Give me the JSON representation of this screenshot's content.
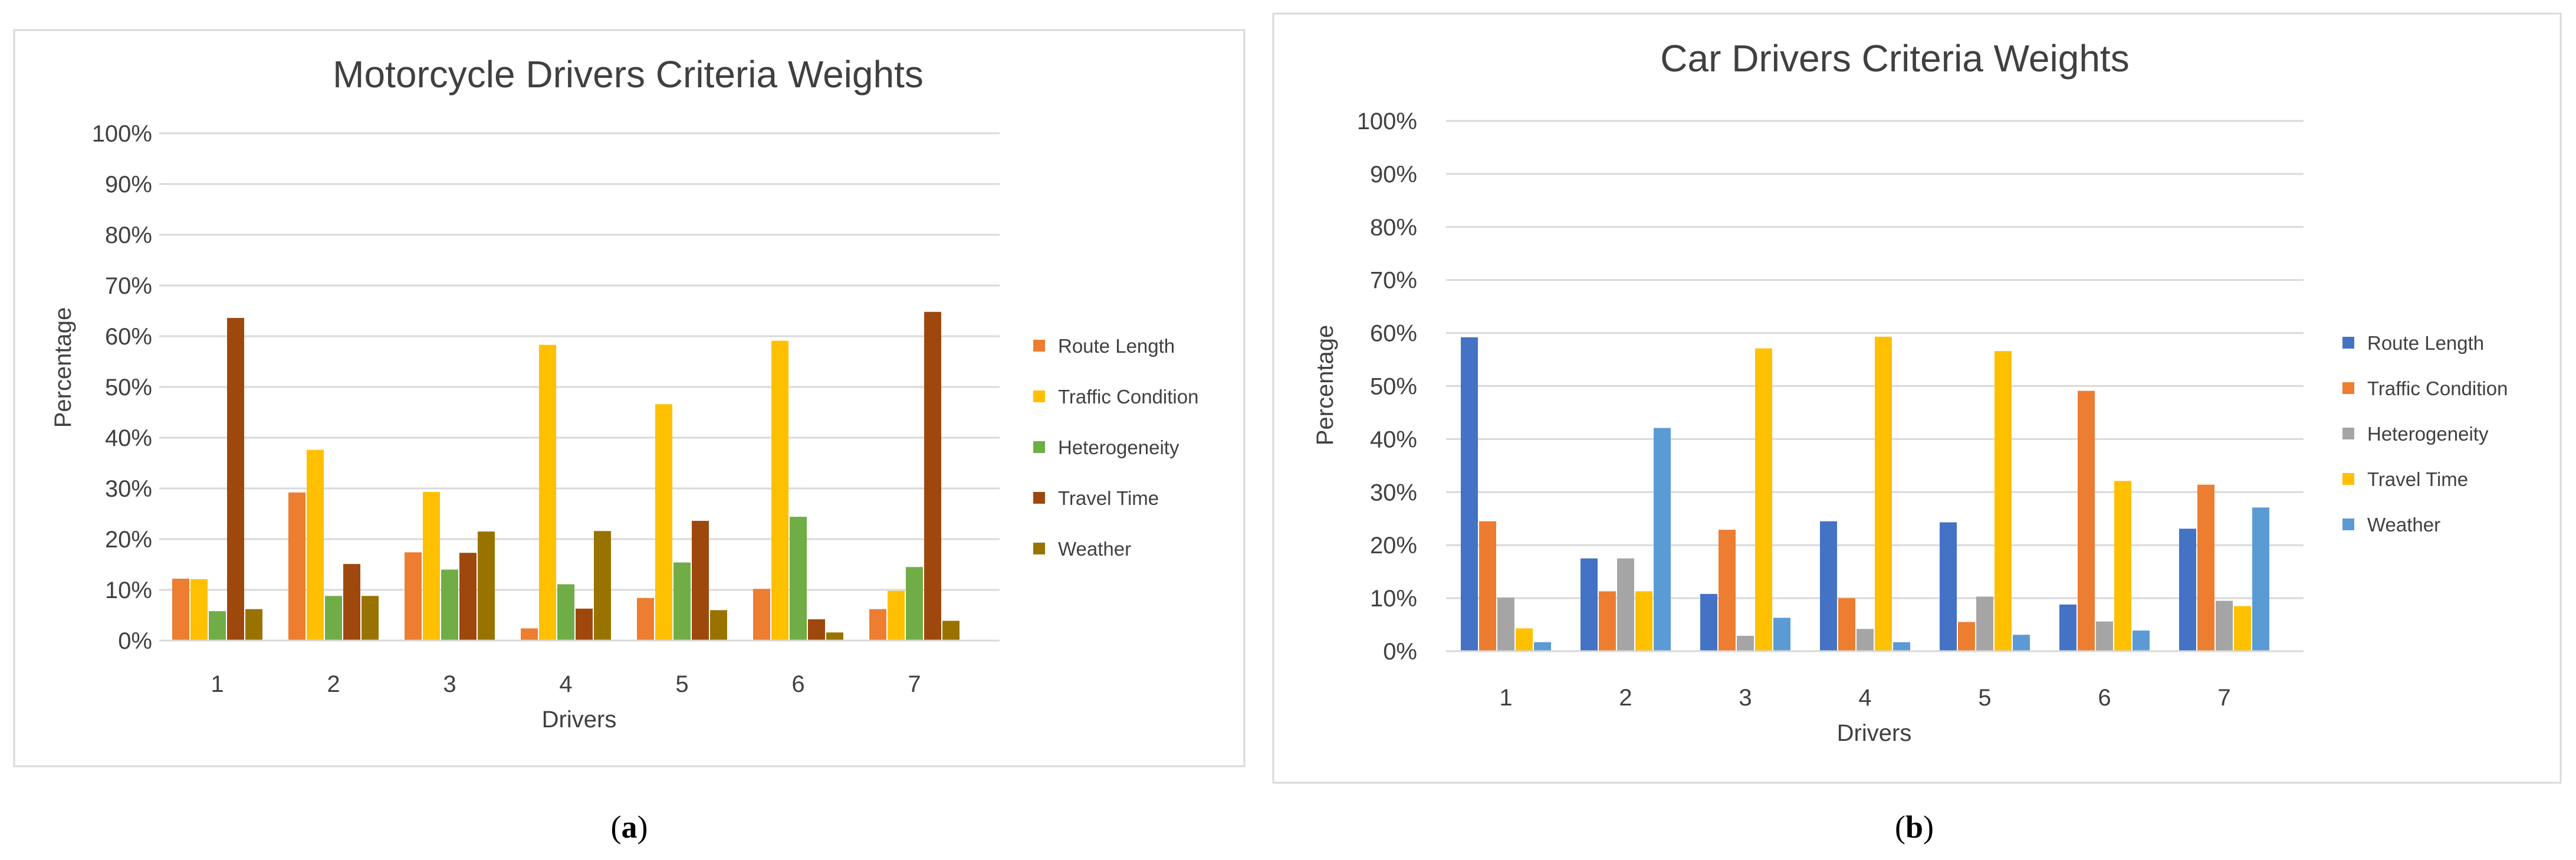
{
  "colors": {
    "route_length_blue": "#4472C4",
    "orange": "#ED7D31",
    "yellow": "#FFC000",
    "green": "#70AD47",
    "dark_red": "#9E480E",
    "olive": "#997300",
    "gray": "#A5A5A5",
    "light_blue": "#5B9BD5",
    "grid": "#D9D9D9",
    "text": "#404040"
  },
  "chart_data": [
    {
      "type": "bar",
      "panel_label_open": "(",
      "panel_letter": "a",
      "panel_label_close": ")",
      "title": "Motorcycle Drivers Criteria Weights",
      "xlabel": "Drivers",
      "ylabel": "Percentage",
      "ylim": [
        0,
        100
      ],
      "yticks": [
        "0%",
        "10%",
        "20%",
        "30%",
        "40%",
        "50%",
        "60%",
        "70%",
        "80%",
        "90%",
        "100%"
      ],
      "categories": [
        "1",
        "2",
        "3",
        "4",
        "5",
        "6",
        "7"
      ],
      "legend_position": "right",
      "series": [
        {
          "name": "Route Length",
          "color": "#ED7D31",
          "values": [
            12.2,
            29.2,
            17.4,
            2.4,
            8.4,
            10.2,
            6.2
          ]
        },
        {
          "name": "Traffic Condition",
          "color": "#FFC000",
          "values": [
            12.1,
            37.6,
            29.3,
            58.3,
            46.6,
            59.1,
            9.8
          ]
        },
        {
          "name": "Heterogeneity",
          "color": "#70AD47",
          "values": [
            5.8,
            8.8,
            14.0,
            11.1,
            15.4,
            24.4,
            14.5
          ]
        },
        {
          "name": "Travel Time",
          "color": "#9E480E",
          "values": [
            63.6,
            15.1,
            17.3,
            6.3,
            23.6,
            4.2,
            64.8
          ]
        },
        {
          "name": "Weather",
          "color": "#997300",
          "values": [
            6.2,
            8.8,
            21.5,
            21.6,
            6.0,
            1.6,
            3.9
          ]
        }
      ]
    },
    {
      "type": "bar",
      "panel_label_open": "(",
      "panel_letter": "b",
      "panel_label_close": ")",
      "title": "Car Drivers Criteria Weights",
      "xlabel": "Drivers",
      "ylabel": "Percentage",
      "ylim": [
        0,
        100
      ],
      "yticks": [
        "0%",
        "10%",
        "20%",
        "30%",
        "40%",
        "50%",
        "60%",
        "70%",
        "80%",
        "90%",
        "100%"
      ],
      "categories": [
        "1",
        "2",
        "3",
        "4",
        "5",
        "6",
        "7"
      ],
      "legend_position": "right",
      "series": [
        {
          "name": "Route Length",
          "color": "#4472C4",
          "values": [
            59.2,
            17.5,
            10.8,
            24.5,
            24.3,
            8.8,
            23.1
          ]
        },
        {
          "name": "Traffic Condition",
          "color": "#ED7D31",
          "values": [
            24.5,
            11.3,
            22.9,
            10.0,
            5.5,
            49.1,
            31.4
          ]
        },
        {
          "name": "Heterogeneity",
          "color": "#A5A5A5",
          "values": [
            10.1,
            17.5,
            2.9,
            4.2,
            10.3,
            5.6,
            9.5
          ]
        },
        {
          "name": "Travel Time",
          "color": "#FFC000",
          "values": [
            4.3,
            11.3,
            57.1,
            59.3,
            56.6,
            32.1,
            8.5
          ]
        },
        {
          "name": "Weather",
          "color": "#5B9BD5",
          "values": [
            1.7,
            42.1,
            6.3,
            1.7,
            3.1,
            3.9,
            27.1
          ]
        }
      ]
    }
  ]
}
